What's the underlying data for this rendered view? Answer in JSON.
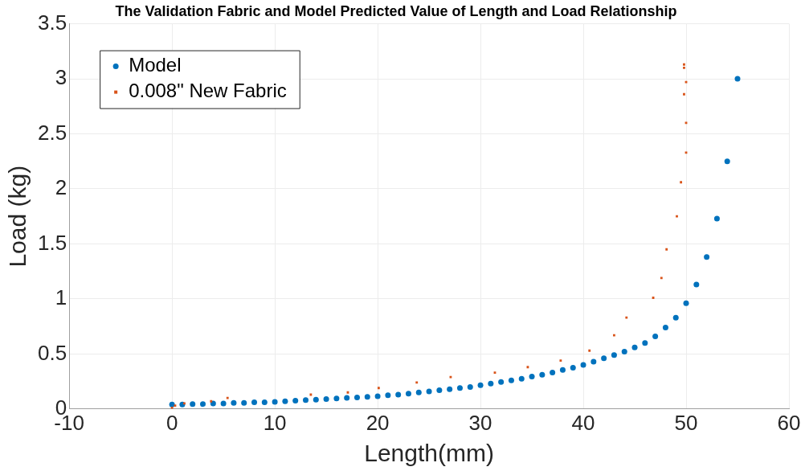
{
  "chart_data": {
    "type": "scatter",
    "title": "The Validation Fabric and Model Predicted Value of Length and Load Relationship",
    "xlabel": "Length(mm)",
    "ylabel": "Load (kg)",
    "xlim": [
      -10,
      60
    ],
    "xticks": [
      -10,
      0,
      10,
      20,
      30,
      40,
      50,
      60
    ],
    "ylim": [
      0,
      3.5
    ],
    "yticks": [
      0,
      0.5,
      1,
      1.5,
      2,
      2.5,
      3,
      3.5
    ],
    "grid": true,
    "legend": "top left",
    "series": [
      {
        "name": "Model",
        "color": "#0072bd",
        "marker": "circle",
        "x": [
          0,
          1,
          2,
          3,
          4,
          5,
          6,
          7,
          8,
          9,
          10,
          11,
          12,
          13,
          14,
          15,
          16,
          17,
          18,
          19,
          20,
          21,
          22,
          23,
          24,
          25,
          26,
          27,
          28,
          29,
          30,
          31,
          32,
          33,
          34,
          35,
          36,
          37,
          38,
          39,
          40,
          41,
          42,
          43,
          44,
          45,
          46,
          47,
          48,
          49,
          50,
          51,
          52,
          53,
          54,
          55
        ],
        "values": [
          0.04,
          0.04,
          0.045,
          0.045,
          0.05,
          0.05,
          0.055,
          0.055,
          0.06,
          0.06,
          0.065,
          0.07,
          0.075,
          0.08,
          0.085,
          0.09,
          0.095,
          0.1,
          0.105,
          0.11,
          0.115,
          0.125,
          0.13,
          0.14,
          0.15,
          0.16,
          0.17,
          0.18,
          0.19,
          0.2,
          0.215,
          0.23,
          0.245,
          0.26,
          0.275,
          0.295,
          0.31,
          0.33,
          0.355,
          0.375,
          0.4,
          0.43,
          0.46,
          0.49,
          0.52,
          0.56,
          0.6,
          0.66,
          0.74,
          0.83,
          0.96,
          1.13,
          1.38,
          1.73,
          2.25,
          3.0
        ]
      },
      {
        "name": "0.008\" New Fabric",
        "color": "#d95319",
        "marker": "square",
        "x": [
          0,
          0.3,
          1.2,
          3.8,
          5.4,
          13.5,
          17.1,
          20.1,
          23.8,
          27.1,
          31.4,
          34.6,
          37.8,
          40.6,
          43.0,
          44.2,
          46.8,
          47.6,
          48.1,
          49.1,
          49.5,
          50.0,
          50.0,
          49.8,
          50.0,
          49.8,
          49.8
        ],
        "values": [
          0.01,
          0.03,
          0.05,
          0.07,
          0.1,
          0.13,
          0.15,
          0.19,
          0.24,
          0.29,
          0.33,
          0.38,
          0.44,
          0.53,
          0.67,
          0.83,
          1.01,
          1.19,
          1.45,
          1.75,
          2.06,
          2.33,
          2.6,
          2.86,
          2.97,
          3.1,
          3.13
        ]
      }
    ]
  }
}
